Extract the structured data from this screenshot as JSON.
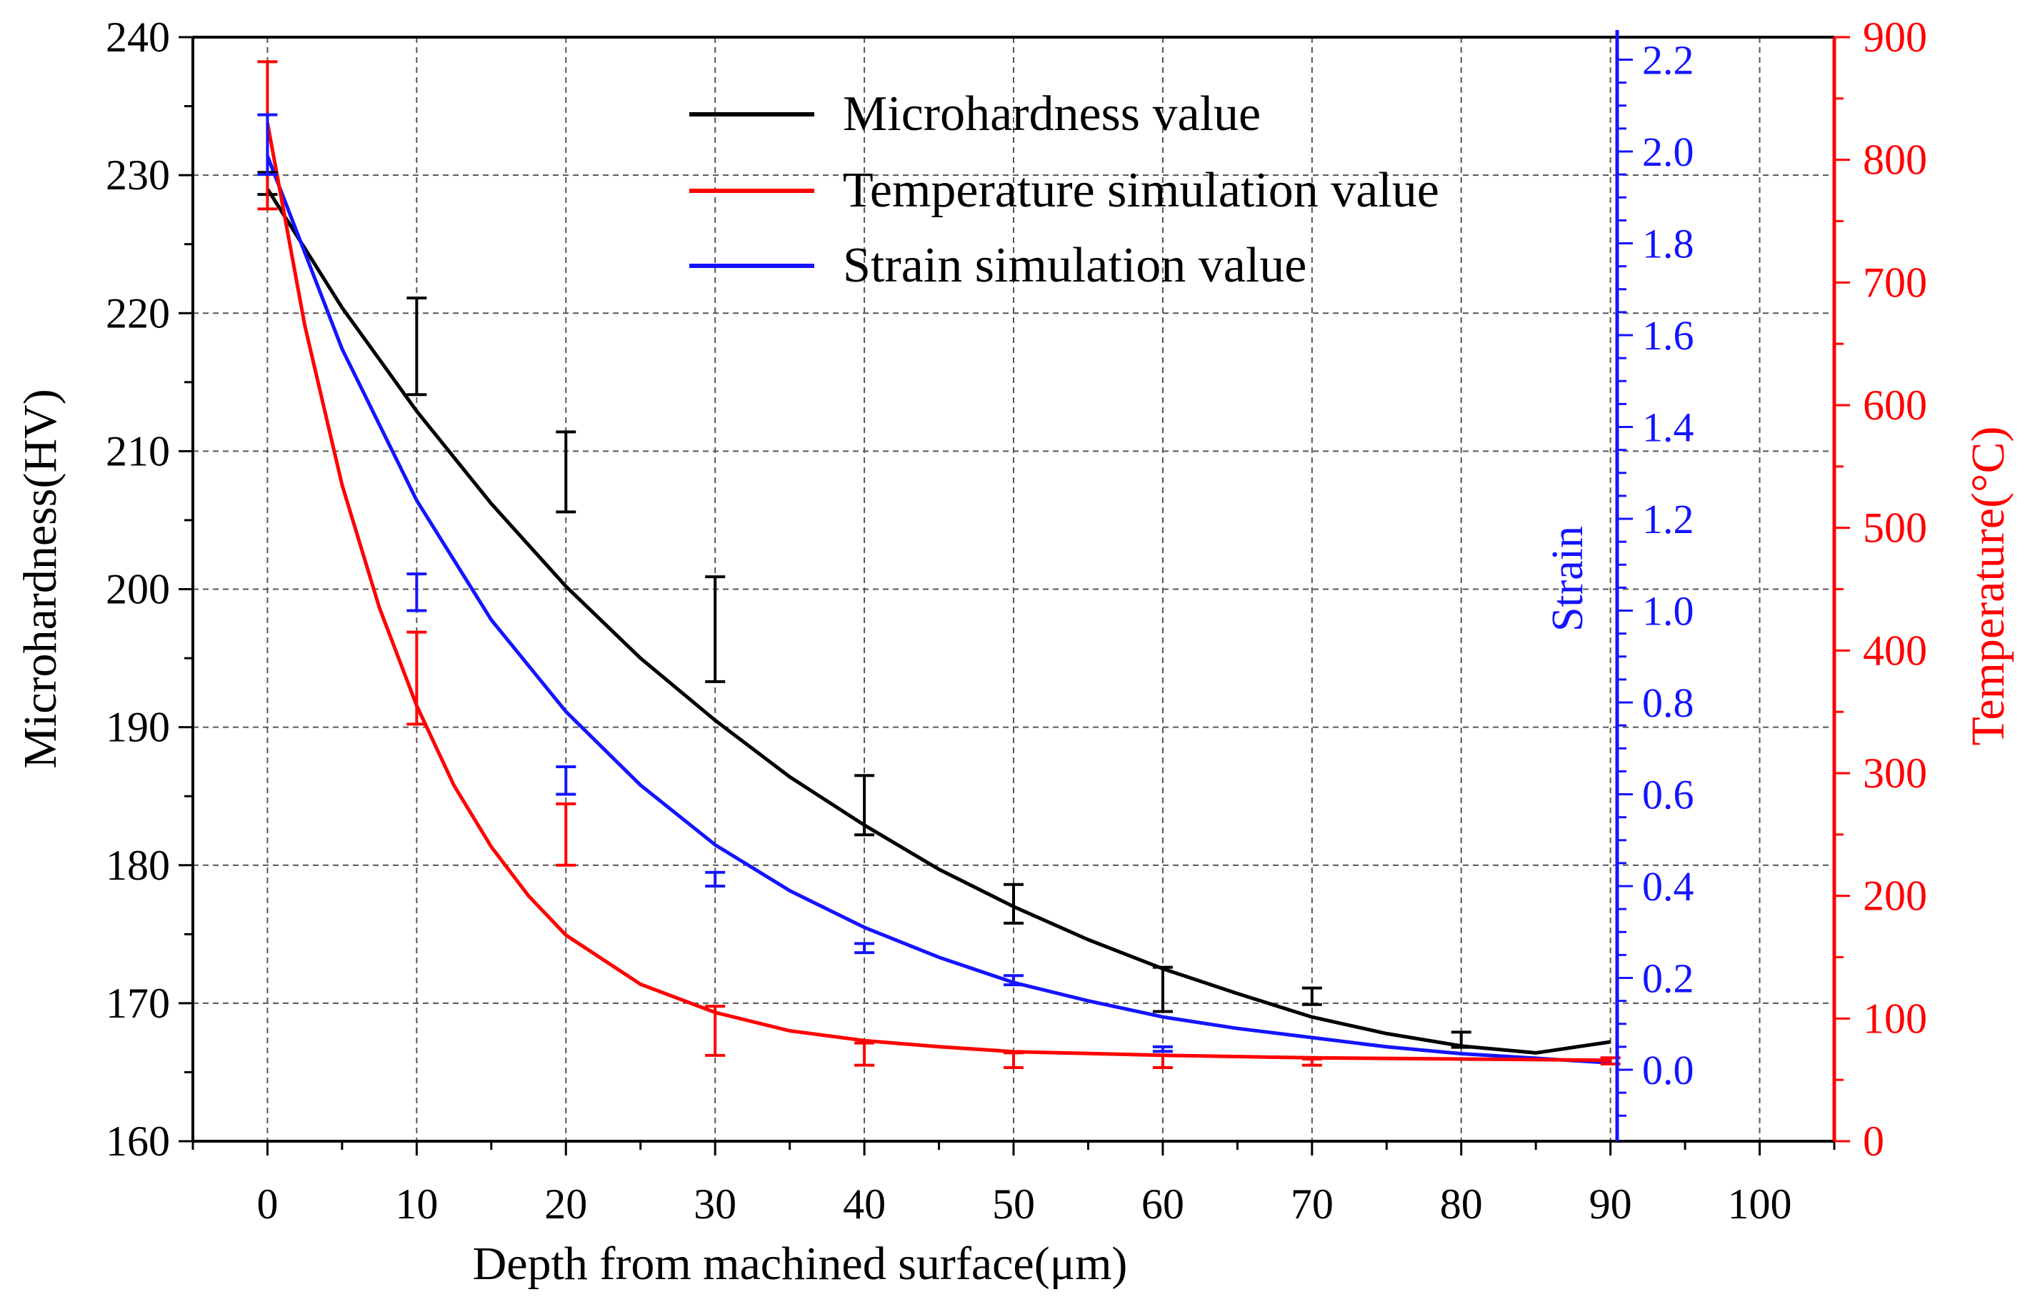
{
  "chart_data": {
    "type": "line",
    "title": "",
    "xlabel": "Depth from machined surface(μm)",
    "xlim": [
      -5,
      105
    ],
    "x_ticks": [
      0,
      10,
      20,
      30,
      40,
      50,
      60,
      70,
      80,
      90,
      100
    ],
    "axes": {
      "left": {
        "label": "Microhardness(HV)",
        "ylim": [
          160,
          240
        ],
        "ticks": [
          160,
          170,
          180,
          190,
          200,
          210,
          220,
          230,
          240
        ],
        "color": "#000000"
      },
      "strain": {
        "label": "Strain",
        "ylim": [
          -0.1,
          2.2
        ],
        "ticks": [
          "0.0",
          "0.2",
          "0.4",
          "0.6",
          "0.8",
          "1.0",
          "1.2",
          "1.4",
          "1.6",
          "1.8",
          "2.0",
          "2.2"
        ],
        "color": "#1414ff"
      },
      "right": {
        "label": "Temperature(°C)",
        "ylim": [
          0,
          900
        ],
        "ticks": [
          0,
          100,
          200,
          300,
          400,
          500,
          600,
          700,
          800,
          900
        ],
        "color": "#ff0000"
      }
    },
    "grid": true,
    "legend_position": "top-center",
    "series": [
      {
        "name": "Microhardness value",
        "color": "#000000",
        "axis": "left",
        "points": [
          {
            "x": 0,
            "y": 229.5,
            "err_low": 228.6,
            "err_high": 230.2
          },
          {
            "x": 10,
            "y": 217.6,
            "err_low": 214.1,
            "err_high": 221.1
          },
          {
            "x": 20,
            "y": 208.5,
            "err_low": 205.6,
            "err_high": 211.4
          },
          {
            "x": 30,
            "y": 197.1,
            "err_low": 193.3,
            "err_high": 200.9
          },
          {
            "x": 40,
            "y": 184.2,
            "err_low": 182.2,
            "err_high": 186.5
          },
          {
            "x": 50,
            "y": 177.2,
            "err_low": 175.8,
            "err_high": 178.6
          },
          {
            "x": 60,
            "y": 171.0,
            "err_low": 169.4,
            "err_high": 172.6
          },
          {
            "x": 70,
            "y": 170.5,
            "err_low": 169.9,
            "err_high": 171.1
          },
          {
            "x": 80,
            "y": 167.4,
            "err_low": 166.8,
            "err_high": 167.9
          }
        ],
        "fit": [
          [
            0,
            229.0
          ],
          [
            5,
            220.4
          ],
          [
            10,
            212.9
          ],
          [
            15,
            206.2
          ],
          [
            20,
            200.2
          ],
          [
            25,
            195.0
          ],
          [
            30,
            190.5
          ],
          [
            35,
            186.4
          ],
          [
            40,
            182.9
          ],
          [
            45,
            179.7
          ],
          [
            50,
            177.0
          ],
          [
            55,
            174.6
          ],
          [
            60,
            172.5
          ],
          [
            65,
            170.7
          ],
          [
            70,
            169.0
          ],
          [
            75,
            167.8
          ],
          [
            80,
            166.9
          ],
          [
            85,
            166.4
          ],
          [
            90,
            167.2
          ]
        ]
      },
      {
        "name": "Temperature simulation value",
        "color": "#ff0000",
        "axis": "right",
        "points": [
          {
            "x": 0,
            "y": 830,
            "err_low": 760,
            "err_high": 880
          },
          {
            "x": 10,
            "y": 380,
            "err_low": 340,
            "err_high": 415
          },
          {
            "x": 20,
            "y": 250,
            "err_low": 225,
            "err_high": 275
          },
          {
            "x": 30,
            "y": 90,
            "err_low": 70,
            "err_high": 110
          },
          {
            "x": 40,
            "y": 70,
            "err_low": 62,
            "err_high": 80
          },
          {
            "x": 50,
            "y": 65,
            "err_low": 60,
            "err_high": 72
          },
          {
            "x": 60,
            "y": 64,
            "err_low": 60,
            "err_high": 70
          },
          {
            "x": 70,
            "y": 64,
            "err_low": 62,
            "err_high": 67
          },
          {
            "x": 90,
            "y": 65,
            "err_low": 63,
            "err_high": 68
          }
        ],
        "fit": [
          [
            0,
            830
          ],
          [
            2.5,
            665
          ],
          [
            5,
            535
          ],
          [
            7.5,
            435
          ],
          [
            10,
            355
          ],
          [
            12.5,
            290
          ],
          [
            15,
            240
          ],
          [
            17.5,
            200
          ],
          [
            20,
            168
          ],
          [
            25,
            128
          ],
          [
            30,
            105
          ],
          [
            35,
            90
          ],
          [
            40,
            82
          ],
          [
            45,
            77
          ],
          [
            50,
            73
          ],
          [
            60,
            70
          ],
          [
            70,
            68
          ],
          [
            80,
            67
          ],
          [
            90,
            66
          ]
        ]
      },
      {
        "name": "Strain simulation value",
        "color": "#1414ff",
        "axis": "strain",
        "points": [
          {
            "x": 0,
            "y": 2.0,
            "err_low": 1.95,
            "err_high": 2.08
          },
          {
            "x": 10,
            "y": 1.04,
            "err_low": 1.0,
            "err_high": 1.08
          },
          {
            "x": 20,
            "y": 0.63,
            "err_low": 0.6,
            "err_high": 0.66
          },
          {
            "x": 30,
            "y": 0.415,
            "err_low": 0.4,
            "err_high": 0.43
          },
          {
            "x": 40,
            "y": 0.265,
            "err_low": 0.255,
            "err_high": 0.275
          },
          {
            "x": 50,
            "y": 0.195,
            "err_low": 0.185,
            "err_high": 0.205
          },
          {
            "x": 60,
            "y": 0.045,
            "err_low": 0.04,
            "err_high": 0.05
          }
        ],
        "fit": [
          [
            0,
            1.99
          ],
          [
            5,
            1.57
          ],
          [
            10,
            1.24
          ],
          [
            15,
            0.98
          ],
          [
            20,
            0.78
          ],
          [
            25,
            0.62
          ],
          [
            30,
            0.49
          ],
          [
            35,
            0.39
          ],
          [
            40,
            0.31
          ],
          [
            45,
            0.245
          ],
          [
            50,
            0.19
          ],
          [
            55,
            0.15
          ],
          [
            60,
            0.115
          ],
          [
            65,
            0.09
          ],
          [
            70,
            0.07
          ],
          [
            75,
            0.05
          ],
          [
            80,
            0.035
          ],
          [
            85,
            0.025
          ],
          [
            90,
            0.015
          ]
        ]
      }
    ]
  }
}
